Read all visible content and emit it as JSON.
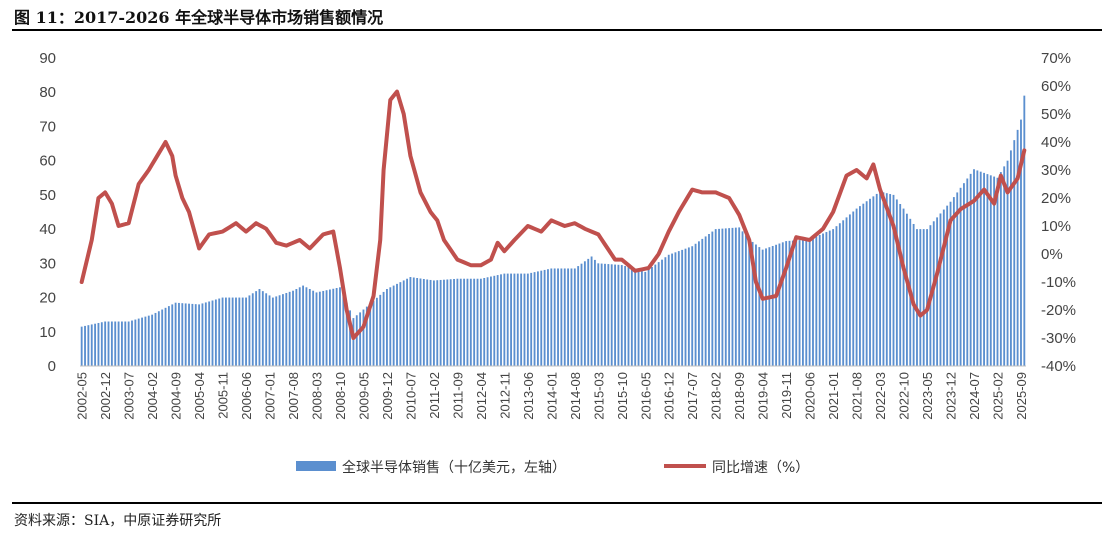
{
  "page": {
    "title": "图 11：2017-2026 年全球半导体市场销售额情况",
    "source": "资料来源：SIA，中原证券研究所"
  },
  "colors": {
    "bar": "#5b8fcf",
    "line": "#c0504d"
  },
  "chart_data": {
    "type": "bar",
    "title": "",
    "y_left": {
      "range": [
        0,
        90
      ],
      "ticks": [
        "0",
        "10",
        "20",
        "30",
        "40",
        "50",
        "60",
        "70",
        "80",
        "90"
      ]
    },
    "y_right": {
      "range": [
        -40,
        70
      ],
      "ticks": [
        "-40%",
        "-30%",
        "-20%",
        "-10%",
        "0%",
        "10%",
        "20%",
        "30%",
        "40%",
        "50%",
        "60%",
        "70%"
      ]
    },
    "x_tick_labels": [
      "2002-05",
      "2002-12",
      "2003-07",
      "2004-02",
      "2004-09",
      "2005-04",
      "2005-11",
      "2006-06",
      "2007-01",
      "2007-08",
      "2008-03",
      "2008-10",
      "2009-05",
      "2009-12",
      "2010-07",
      "2011-02",
      "2011-09",
      "2012-04",
      "2012-11",
      "2013-06",
      "2014-01",
      "2014-08",
      "2015-03",
      "2015-10",
      "2016-05",
      "2016-12",
      "2017-07",
      "2018-02",
      "2018-09",
      "2019-04",
      "2019-11",
      "2020-06",
      "2021-01",
      "2021-08",
      "2022-03",
      "2022-10",
      "2023-05",
      "2023-12",
      "2024-07",
      "2025-02",
      "2025-09"
    ],
    "x_start": "2002-05",
    "x_end": "2025-10",
    "legend": {
      "position": "bottom",
      "entries": [
        "全球半导体销售（十亿美元，左轴）",
        "同比增速（%）"
      ]
    },
    "series": [
      {
        "name": "全球半导体销售（十亿美元，左轴）",
        "type": "bar",
        "axis": "left",
        "anchors": [
          [
            "2002-05",
            11.5
          ],
          [
            "2002-12",
            13
          ],
          [
            "2003-07",
            13
          ],
          [
            "2004-02",
            15
          ],
          [
            "2004-09",
            18.5
          ],
          [
            "2005-04",
            18
          ],
          [
            "2005-11",
            20
          ],
          [
            "2006-06",
            20
          ],
          [
            "2006-10",
            22.5
          ],
          [
            "2007-02",
            20
          ],
          [
            "2007-08",
            22
          ],
          [
            "2007-11",
            23.5
          ],
          [
            "2008-03",
            21.5
          ],
          [
            "2008-10",
            23
          ],
          [
            "2009-02",
            14
          ],
          [
            "2009-05",
            16.5
          ],
          [
            "2009-12",
            22.5
          ],
          [
            "2010-07",
            26
          ],
          [
            "2011-02",
            25
          ],
          [
            "2011-09",
            25.5
          ],
          [
            "2012-04",
            25.5
          ],
          [
            "2012-11",
            27
          ],
          [
            "2013-06",
            27
          ],
          [
            "2014-01",
            28.5
          ],
          [
            "2014-08",
            28.5
          ],
          [
            "2015-01",
            32
          ],
          [
            "2015-03",
            30
          ],
          [
            "2015-10",
            29.5
          ],
          [
            "2016-05",
            27.5
          ],
          [
            "2016-12",
            32.5
          ],
          [
            "2017-07",
            35
          ],
          [
            "2018-02",
            40
          ],
          [
            "2018-09",
            40.5
          ],
          [
            "2018-12",
            37
          ],
          [
            "2019-04",
            34
          ],
          [
            "2019-11",
            36.5
          ],
          [
            "2020-06",
            37
          ],
          [
            "2021-01",
            40
          ],
          [
            "2021-08",
            46
          ],
          [
            "2022-03",
            51
          ],
          [
            "2022-07",
            50
          ],
          [
            "2022-10",
            46
          ],
          [
            "2023-02",
            40
          ],
          [
            "2023-05",
            40
          ],
          [
            "2023-12",
            48
          ],
          [
            "2024-07",
            57.5
          ],
          [
            "2025-02",
            55
          ],
          [
            "2025-05",
            60
          ],
          [
            "2025-09",
            72
          ],
          [
            "2025-10",
            79
          ]
        ]
      },
      {
        "name": "同比增速（%）",
        "type": "line",
        "axis": "right",
        "anchors": [
          [
            "2002-05",
            -10
          ],
          [
            "2002-08",
            5
          ],
          [
            "2002-10",
            20
          ],
          [
            "2002-12",
            22
          ],
          [
            "2003-02",
            18
          ],
          [
            "2003-04",
            10
          ],
          [
            "2003-07",
            11
          ],
          [
            "2003-10",
            25
          ],
          [
            "2004-01",
            30
          ],
          [
            "2004-04",
            36
          ],
          [
            "2004-06",
            40
          ],
          [
            "2004-08",
            35
          ],
          [
            "2004-09",
            28
          ],
          [
            "2004-11",
            20
          ],
          [
            "2005-01",
            15
          ],
          [
            "2005-04",
            2
          ],
          [
            "2005-07",
            7
          ],
          [
            "2005-11",
            8
          ],
          [
            "2006-03",
            11
          ],
          [
            "2006-06",
            8
          ],
          [
            "2006-09",
            11
          ],
          [
            "2006-12",
            9
          ],
          [
            "2007-03",
            4
          ],
          [
            "2007-06",
            3
          ],
          [
            "2007-10",
            5
          ],
          [
            "2008-01",
            2
          ],
          [
            "2008-05",
            7
          ],
          [
            "2008-08",
            8
          ],
          [
            "2008-10",
            -5
          ],
          [
            "2008-12",
            -20
          ],
          [
            "2009-02",
            -30
          ],
          [
            "2009-05",
            -26
          ],
          [
            "2009-08",
            -15
          ],
          [
            "2009-10",
            5
          ],
          [
            "2009-11",
            30
          ],
          [
            "2010-01",
            55
          ],
          [
            "2010-03",
            58
          ],
          [
            "2010-05",
            50
          ],
          [
            "2010-07",
            35
          ],
          [
            "2010-10",
            22
          ],
          [
            "2011-01",
            15
          ],
          [
            "2011-03",
            12
          ],
          [
            "2011-05",
            5
          ],
          [
            "2011-09",
            -2
          ],
          [
            "2012-01",
            -4
          ],
          [
            "2012-04",
            -4
          ],
          [
            "2012-07",
            -2
          ],
          [
            "2012-09",
            4
          ],
          [
            "2012-11",
            1
          ],
          [
            "2013-02",
            5
          ],
          [
            "2013-06",
            10
          ],
          [
            "2013-10",
            8
          ],
          [
            "2014-01",
            12
          ],
          [
            "2014-05",
            10
          ],
          [
            "2014-08",
            11
          ],
          [
            "2014-11",
            9
          ],
          [
            "2015-03",
            7
          ],
          [
            "2015-08",
            -2
          ],
          [
            "2015-10",
            -2
          ],
          [
            "2016-02",
            -6
          ],
          [
            "2016-06",
            -5
          ],
          [
            "2016-09",
            0
          ],
          [
            "2016-12",
            8
          ],
          [
            "2017-03",
            15
          ],
          [
            "2017-07",
            23
          ],
          [
            "2017-10",
            22
          ],
          [
            "2018-02",
            22
          ],
          [
            "2018-06",
            20
          ],
          [
            "2018-09",
            14
          ],
          [
            "2018-12",
            5
          ],
          [
            "2019-02",
            -10
          ],
          [
            "2019-04",
            -16
          ],
          [
            "2019-08",
            -15
          ],
          [
            "2019-11",
            -5
          ],
          [
            "2020-02",
            6
          ],
          [
            "2020-06",
            5
          ],
          [
            "2020-10",
            9
          ],
          [
            "2021-01",
            15
          ],
          [
            "2021-05",
            28
          ],
          [
            "2021-08",
            30
          ],
          [
            "2021-11",
            27
          ],
          [
            "2022-01",
            32
          ],
          [
            "2022-03",
            23
          ],
          [
            "2022-07",
            10
          ],
          [
            "2022-10",
            -5
          ],
          [
            "2023-01",
            -18
          ],
          [
            "2023-03",
            -22
          ],
          [
            "2023-05",
            -20
          ],
          [
            "2023-08",
            -7
          ],
          [
            "2023-12",
            12
          ],
          [
            "2024-03",
            16
          ],
          [
            "2024-07",
            19
          ],
          [
            "2024-10",
            23
          ],
          [
            "2025-01",
            18
          ],
          [
            "2025-03",
            28
          ],
          [
            "2025-05",
            22
          ],
          [
            "2025-08",
            27
          ],
          [
            "2025-10",
            37
          ]
        ]
      }
    ]
  }
}
